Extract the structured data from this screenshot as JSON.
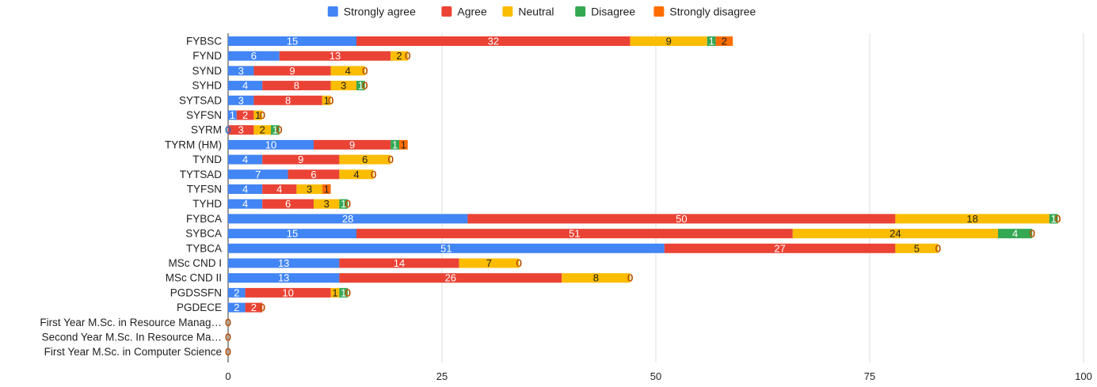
{
  "chart_data": {
    "type": "bar",
    "orientation": "horizontal",
    "stacked": true,
    "title": "",
    "xlabel": "",
    "ylabel": "",
    "xlim": [
      0,
      100
    ],
    "ticks": [
      "0",
      "25",
      "50",
      "75",
      "100"
    ],
    "tick_values": [
      0,
      25,
      50,
      75,
      100
    ],
    "grid": true,
    "legend_position": "top",
    "categories": [
      "FYBSC",
      "FYND",
      "SYND",
      "SYHD",
      "SYTSAD",
      "SYFSN",
      "SYRM",
      "TYRM (HM)",
      "TYND",
      "TYTSAD",
      "TYFSN",
      "TYHD",
      "FYBCA",
      "SYBCA",
      "TYBCA",
      "MSc CND I",
      "MSc CND II",
      "PGDSSFN",
      "PGDECE",
      "First Year M.Sc. in Resource Manag…",
      "Second Year M.Sc. In Resource Ma…",
      "First Year M.Sc. in Computer Science"
    ],
    "series": [
      {
        "name": "Strongly agree",
        "color": "#4285F4",
        "label_color": "#ffffff",
        "values": [
          15,
          6,
          3,
          4,
          3,
          1,
          0,
          10,
          4,
          7,
          4,
          4,
          28,
          15,
          51,
          13,
          13,
          2,
          2,
          0,
          0,
          0
        ]
      },
      {
        "name": "Agree",
        "color": "#EA4335",
        "label_color": "#ffffff",
        "values": [
          32,
          13,
          9,
          8,
          8,
          2,
          3,
          9,
          9,
          6,
          4,
          6,
          50,
          51,
          27,
          14,
          26,
          10,
          2,
          0,
          0,
          0
        ]
      },
      {
        "name": "Neutral",
        "color": "#FBBC04",
        "label_color": "#222222",
        "values": [
          9,
          2,
          4,
          3,
          1,
          1,
          2,
          0,
          6,
          4,
          3,
          3,
          18,
          24,
          5,
          7,
          8,
          1,
          0,
          0,
          0,
          0
        ]
      },
      {
        "name": "Disagree",
        "color": "#34A853",
        "label_color": "#ffffff",
        "values": [
          1,
          0,
          0,
          1,
          0,
          0,
          1,
          1,
          0,
          0,
          0,
          1,
          1,
          4,
          0,
          0,
          0,
          1,
          0,
          0,
          0,
          0
        ]
      },
      {
        "name": "Strongly disagree",
        "color": "#FF6D01",
        "label_color": "#222222",
        "values": [
          2,
          0,
          0,
          0,
          0,
          0,
          0,
          1,
          0,
          0,
          1,
          0,
          0,
          0,
          0,
          0,
          0,
          0,
          0,
          0,
          0,
          0
        ]
      }
    ]
  }
}
